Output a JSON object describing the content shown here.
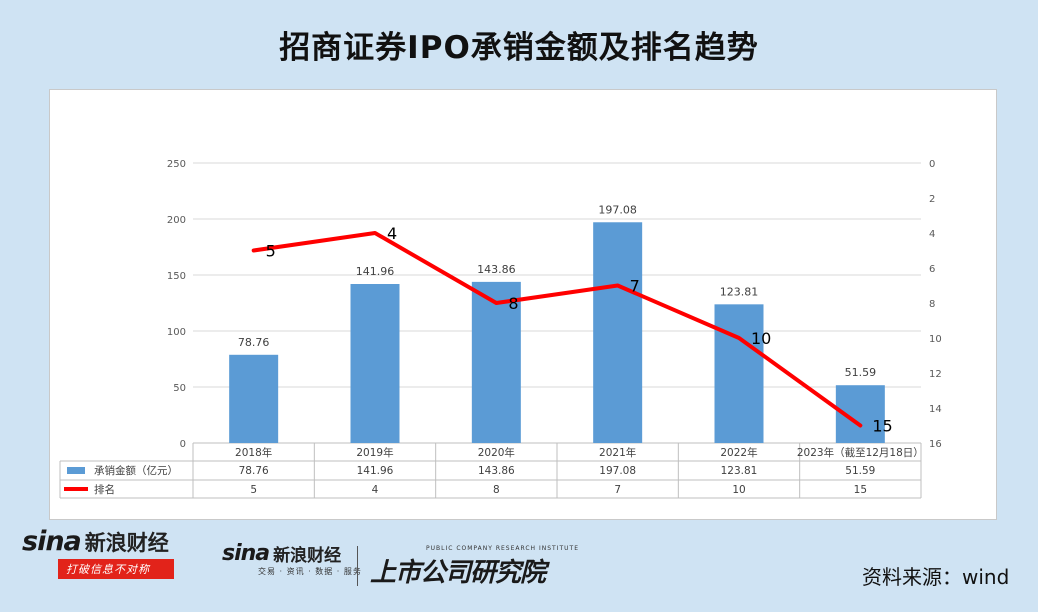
{
  "title": "招商证券IPO承销金额及排名趋势",
  "source_text": "资料来源：wind",
  "brand": {
    "sina_word": "sina",
    "sina_cn": "新浪财经",
    "slogan": "打破信息不对称",
    "sina_sub": "交易 · 资讯 · 数据 · 服务",
    "institute_en": "PUBLIC COMPANY RESEARCH INSTITUTE",
    "institute_cn": "上市公司研究院"
  },
  "colors": {
    "bar": "#5b9bd5",
    "line": "#ff0000",
    "background": "#cfe3f3"
  },
  "chart_data": {
    "type": "bar",
    "title": "",
    "categories": [
      "2018年",
      "2019年",
      "2020年",
      "2021年",
      "2022年",
      "2023年（截至12月18日）"
    ],
    "y_left": {
      "ylim": [
        0,
        250
      ],
      "ticks": [
        0,
        50,
        100,
        150,
        200,
        250
      ]
    },
    "y_right": {
      "ylim": [
        0,
        16
      ],
      "ticks": [
        0,
        2,
        4,
        6,
        8,
        10,
        12,
        14,
        16
      ],
      "reversed": true
    },
    "grid": true,
    "legend_placement": "data-table-bottom",
    "series": [
      {
        "name": "承销金额（亿元）",
        "type": "bar",
        "axis": "left",
        "color": "#5b9bd5",
        "values": [
          78.76,
          141.96,
          143.86,
          197.08,
          123.81,
          51.59
        ],
        "labels": [
          "78.76",
          "141.96",
          "143.86",
          "197.08",
          "123.81",
          "51.59"
        ]
      },
      {
        "name": "排名",
        "type": "line",
        "axis": "right",
        "color": "#ff0000",
        "values": [
          5,
          4,
          8,
          7,
          10,
          15
        ],
        "labels": [
          "5",
          "4",
          "8",
          "7",
          "10",
          "15"
        ]
      }
    ]
  }
}
